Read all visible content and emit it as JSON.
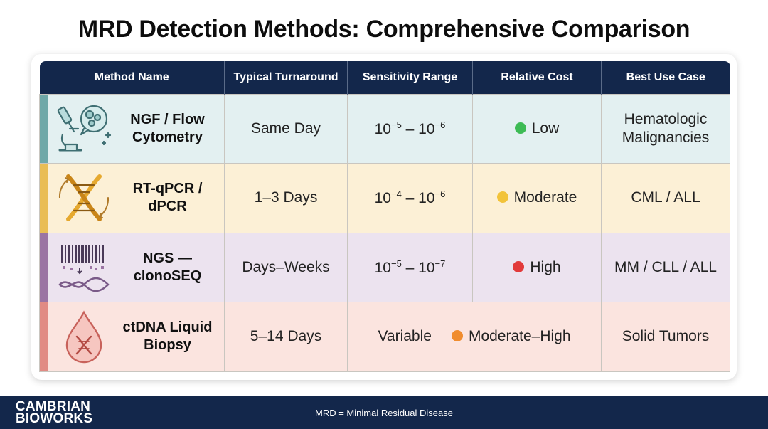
{
  "title": "MRD Detection Methods: Comprehensive Comparison",
  "headers": [
    "Method Name",
    "Typical Turnaround",
    "Sensitivity Range",
    "Relative Cost",
    "Best Use Case"
  ],
  "rows": [
    {
      "method_line1": "NGF / Flow",
      "method_line2": "Cytometry",
      "icon": "microscope-cells-icon",
      "turnaround": "Same Day",
      "sensitivity": {
        "base_a": "10",
        "exp_a": "−5",
        "sep": " – ",
        "base_b": "10",
        "exp_b": "−6"
      },
      "cost": "Low",
      "cost_color": "#3dbb55",
      "use_line1": "Hematologic",
      "use_line2": "Malignancies"
    },
    {
      "method_line1": "RT-qPCR /",
      "method_line2": "dPCR",
      "icon": "dna-helix-icon",
      "turnaround": "1–3 Days",
      "sensitivity": {
        "base_a": "10",
        "exp_a": "−4",
        "sep": " – ",
        "base_b": "10",
        "exp_b": "−6"
      },
      "cost": "Moderate",
      "cost_color": "#f2c33a",
      "use_line1": "CML / ALL",
      "use_line2": ""
    },
    {
      "method_line1": "NGS —",
      "method_line2": "clonoSEQ",
      "icon": "barcode-sequencing-icon",
      "turnaround": "Days–Weeks",
      "sensitivity": {
        "base_a": "10",
        "exp_a": "−5",
        "sep": " – ",
        "base_b": "10",
        "exp_b": "−7"
      },
      "cost": "High",
      "cost_color": "#e23a3a",
      "use_line1": "MM / CLL / ALL",
      "use_line2": ""
    },
    {
      "method_line1": "ctDNA Liquid",
      "method_line2": "Biopsy",
      "icon": "blood-drop-dna-icon",
      "turnaround": "5–14 Days",
      "sensitivity_text": "Variable",
      "cost": "Moderate–High",
      "cost_color": "#f08c2e",
      "use_line1": "Solid Tumors",
      "use_line2": ""
    }
  ],
  "footer": {
    "logo_line1": "CAMBRIAN",
    "logo_line2": "BIOWORKS",
    "note": "MRD = Minimal Residual Disease"
  }
}
